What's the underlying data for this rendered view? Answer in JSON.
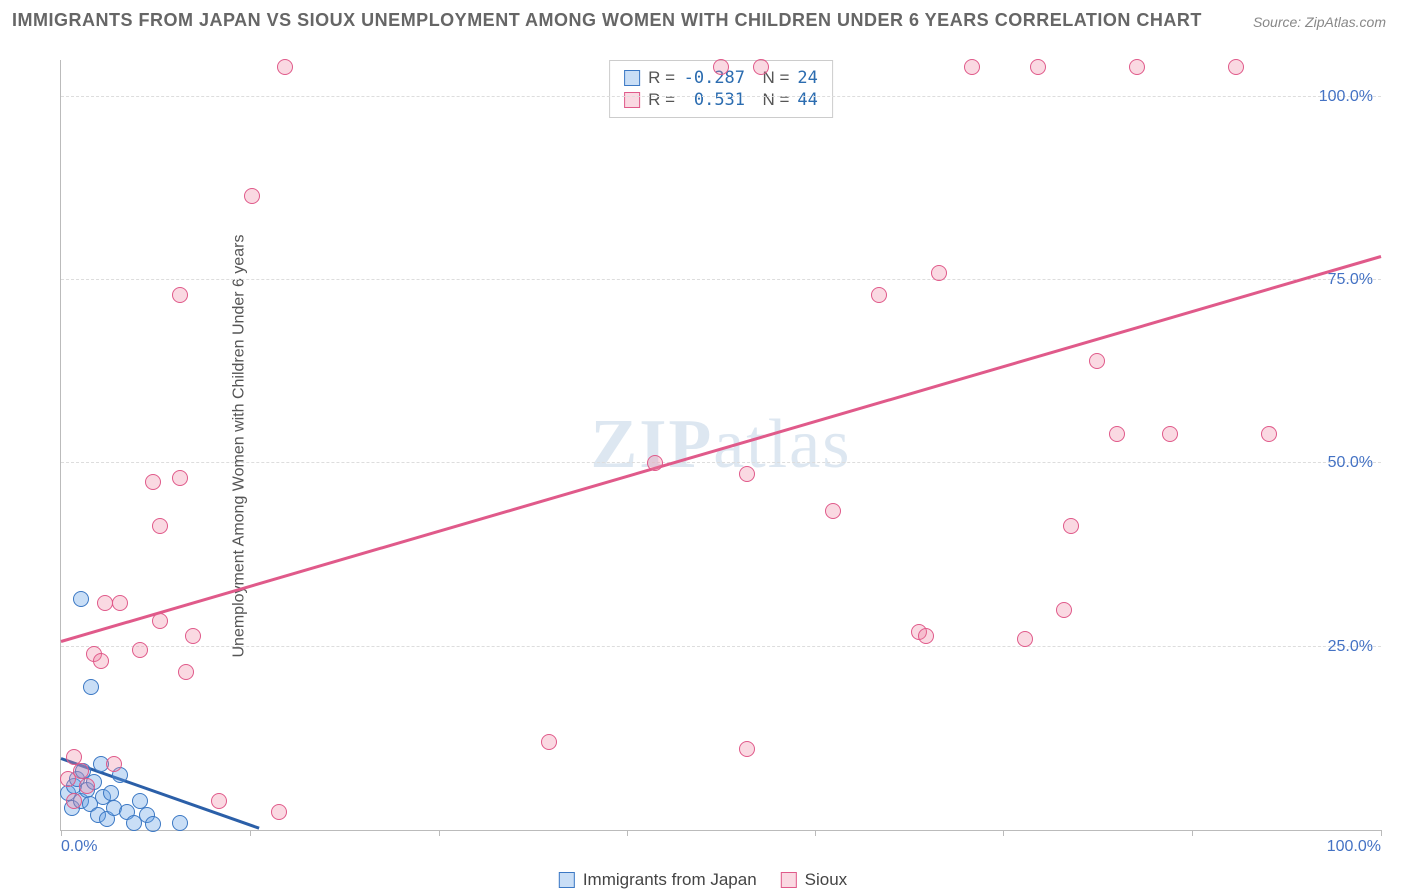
{
  "title": "IMMIGRANTS FROM JAPAN VS SIOUX UNEMPLOYMENT AMONG WOMEN WITH CHILDREN UNDER 6 YEARS CORRELATION CHART",
  "source": "Source: ZipAtlas.com",
  "ylabel": "Unemployment Among Women with Children Under 6 years",
  "watermark": "ZIPatlas",
  "chart": {
    "type": "scatter",
    "xlim": [
      0,
      100
    ],
    "ylim": [
      0,
      105
    ],
    "xtick_labels": {
      "0": "0.0%",
      "100": "100.0%"
    },
    "xtick_marks": [
      0,
      14.3,
      28.6,
      42.9,
      57.1,
      71.4,
      85.7,
      100
    ],
    "ytick_labels": {
      "25": "25.0%",
      "50": "50.0%",
      "75": "75.0%",
      "100": "100.0%"
    },
    "grid_y": [
      25,
      50,
      75,
      100
    ],
    "grid_color": "#dddddd",
    "axis_color": "#bbbbbb",
    "background_color": "#ffffff",
    "tick_label_color": "#4472c4",
    "point_radius": 8,
    "series": [
      {
        "name": "Immigrants from Japan",
        "fill": "rgba(100,160,230,0.35)",
        "stroke": "#3b78c4",
        "regression": {
          "x1": 0,
          "y1": 9.5,
          "x2": 15,
          "y2": 0,
          "color": "#2b5fa8",
          "width": 3
        },
        "R": "-0.287",
        "N": "24",
        "points": [
          [
            0.5,
            5.0
          ],
          [
            0.8,
            3.0
          ],
          [
            1.0,
            6.0
          ],
          [
            1.2,
            7.0
          ],
          [
            1.5,
            4.0
          ],
          [
            1.7,
            8.0
          ],
          [
            2.0,
            5.5
          ],
          [
            2.2,
            3.5
          ],
          [
            2.5,
            6.5
          ],
          [
            2.8,
            2.0
          ],
          [
            3.0,
            9.0
          ],
          [
            3.2,
            4.5
          ],
          [
            3.5,
            1.5
          ],
          [
            3.8,
            5.0
          ],
          [
            4.0,
            3.0
          ],
          [
            4.5,
            7.5
          ],
          [
            5.0,
            2.5
          ],
          [
            5.5,
            1.0
          ],
          [
            6.0,
            4.0
          ],
          [
            6.5,
            2.0
          ],
          [
            7.0,
            0.8
          ],
          [
            2.3,
            19.5
          ],
          [
            1.5,
            31.5
          ],
          [
            9.0,
            1.0
          ]
        ]
      },
      {
        "name": "Sioux",
        "fill": "rgba(240,130,160,0.30)",
        "stroke": "#e05a8a",
        "regression": {
          "x1": 0,
          "y1": 25.5,
          "x2": 100,
          "y2": 78,
          "color": "#e05a8a",
          "width": 3
        },
        "R": "0.531",
        "N": "44",
        "points": [
          [
            1.0,
            10.0
          ],
          [
            1.5,
            8.0
          ],
          [
            2.5,
            24.0
          ],
          [
            3.0,
            23.0
          ],
          [
            3.3,
            31.0
          ],
          [
            4.5,
            31.0
          ],
          [
            6.0,
            24.5
          ],
          [
            7.0,
            47.5
          ],
          [
            7.5,
            28.5
          ],
          [
            7.5,
            41.5
          ],
          [
            9.0,
            48.0
          ],
          [
            9.0,
            73.0
          ],
          [
            9.5,
            21.5
          ],
          [
            10.0,
            26.5
          ],
          [
            12.0,
            4.0
          ],
          [
            14.5,
            86.5
          ],
          [
            16.5,
            2.5
          ],
          [
            17.0,
            104.0
          ],
          [
            37.0,
            12.0
          ],
          [
            45.0,
            50.0
          ],
          [
            50.0,
            104.0
          ],
          [
            52.0,
            48.5
          ],
          [
            52.0,
            11.0
          ],
          [
            53.0,
            104.0
          ],
          [
            58.5,
            43.5
          ],
          [
            62.0,
            73.0
          ],
          [
            65.0,
            27.0
          ],
          [
            65.5,
            26.5
          ],
          [
            66.5,
            76.0
          ],
          [
            69.0,
            104.0
          ],
          [
            73.0,
            26.0
          ],
          [
            74.0,
            104.0
          ],
          [
            76.0,
            30.0
          ],
          [
            76.5,
            41.5
          ],
          [
            78.5,
            64.0
          ],
          [
            80.0,
            54.0
          ],
          [
            81.5,
            104.0
          ],
          [
            84.0,
            54.0
          ],
          [
            89.0,
            104.0
          ],
          [
            91.5,
            54.0
          ],
          [
            2.0,
            6.0
          ],
          [
            4.0,
            9.0
          ],
          [
            1.0,
            4.0
          ],
          [
            0.5,
            7.0
          ]
        ]
      }
    ]
  },
  "legend": {
    "items": [
      {
        "label": "Immigrants from Japan",
        "fill": "rgba(100,160,230,0.35)",
        "stroke": "#3b78c4"
      },
      {
        "label": "Sioux",
        "fill": "rgba(240,130,160,0.30)",
        "stroke": "#e05a8a"
      }
    ]
  }
}
